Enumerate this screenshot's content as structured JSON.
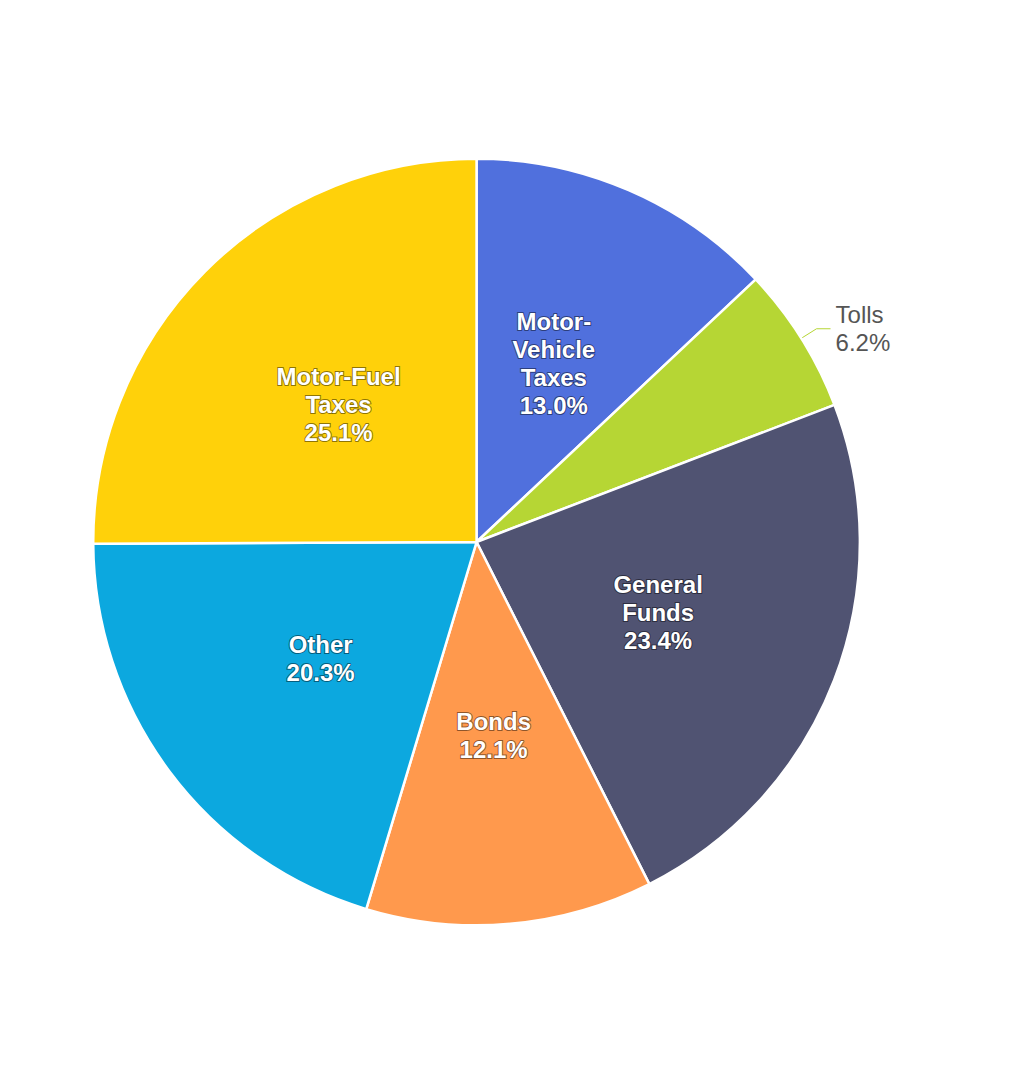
{
  "chart_data": {
    "type": "pie",
    "categories": [
      "Motor-\nVehicle\nTaxes",
      "Tolls",
      "General\nFunds",
      "Bonds",
      "Other",
      "Motor-Fuel\nTaxes"
    ],
    "values": [
      13.0,
      6.2,
      23.4,
      12.1,
      20.3,
      25.1
    ],
    "value_labels": [
      "13.0%",
      "6.2%",
      "23.4%",
      "12.1%",
      "20.3%",
      "25.1%"
    ],
    "data_labels": true
  }
}
